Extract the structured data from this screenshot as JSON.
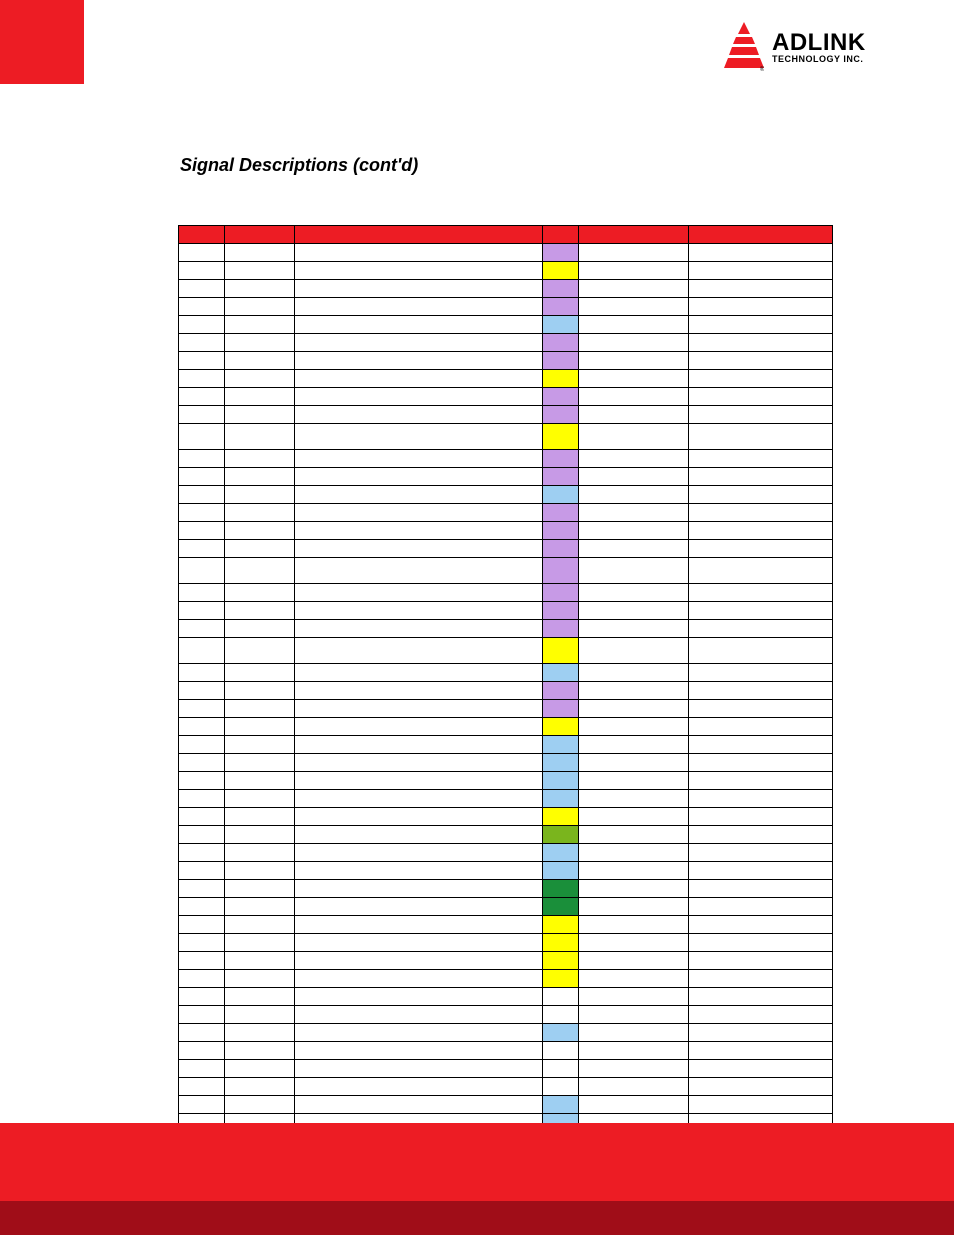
{
  "logo": {
    "name": "ADLINK",
    "sub": "TECHNOLOGY INC.",
    "mark_color": "#ed1c24"
  },
  "section_title": "Signal Descriptions (cont'd)",
  "table": {
    "header_bg": "#ed1c24",
    "columns": [
      46,
      70,
      248,
      36,
      110,
      144
    ],
    "colors": {
      "purple": "#c79ae6",
      "yellow": "#ffff00",
      "blue": "#9ecff2",
      "green": "#7ab51d",
      "dgreen": "#1a8f3a",
      "white": "#ffffff"
    },
    "rows": [
      {
        "c": "purple"
      },
      {
        "c": "yellow"
      },
      {
        "c": "purple"
      },
      {
        "c": "purple"
      },
      {
        "c": "blue"
      },
      {
        "c": "purple"
      },
      {
        "c": "purple"
      },
      {
        "c": "yellow"
      },
      {
        "c": "purple"
      },
      {
        "c": "purple"
      },
      {
        "c": "yellow",
        "tall": true
      },
      {
        "c": "purple"
      },
      {
        "c": "purple"
      },
      {
        "c": "blue"
      },
      {
        "c": "purple"
      },
      {
        "c": "purple"
      },
      {
        "c": "purple"
      },
      {
        "c": "purple",
        "tall": true
      },
      {
        "c": "purple"
      },
      {
        "c": "purple"
      },
      {
        "c": "purple"
      },
      {
        "c": "yellow",
        "tall": true
      },
      {
        "c": "blue"
      },
      {
        "c": "purple"
      },
      {
        "c": "purple"
      },
      {
        "c": "yellow"
      },
      {
        "c": "blue"
      },
      {
        "c": "blue"
      },
      {
        "c": "blue"
      },
      {
        "c": "blue"
      },
      {
        "c": "yellow"
      },
      {
        "c": "green"
      },
      {
        "c": "blue"
      },
      {
        "c": "blue"
      },
      {
        "c": "dgreen"
      },
      {
        "c": "dgreen"
      },
      {
        "c": "yellow"
      },
      {
        "c": "yellow"
      },
      {
        "c": "yellow"
      },
      {
        "c": "yellow"
      },
      {
        "c": "white"
      },
      {
        "c": "white"
      },
      {
        "c": "blue"
      },
      {
        "c": "white"
      },
      {
        "c": "white"
      },
      {
        "c": "white"
      },
      {
        "c": "blue"
      },
      {
        "c": "blue"
      },
      {
        "c": "blue"
      },
      {
        "c": "blue"
      },
      {
        "c": "blue"
      },
      {
        "c": "blue"
      }
    ]
  }
}
